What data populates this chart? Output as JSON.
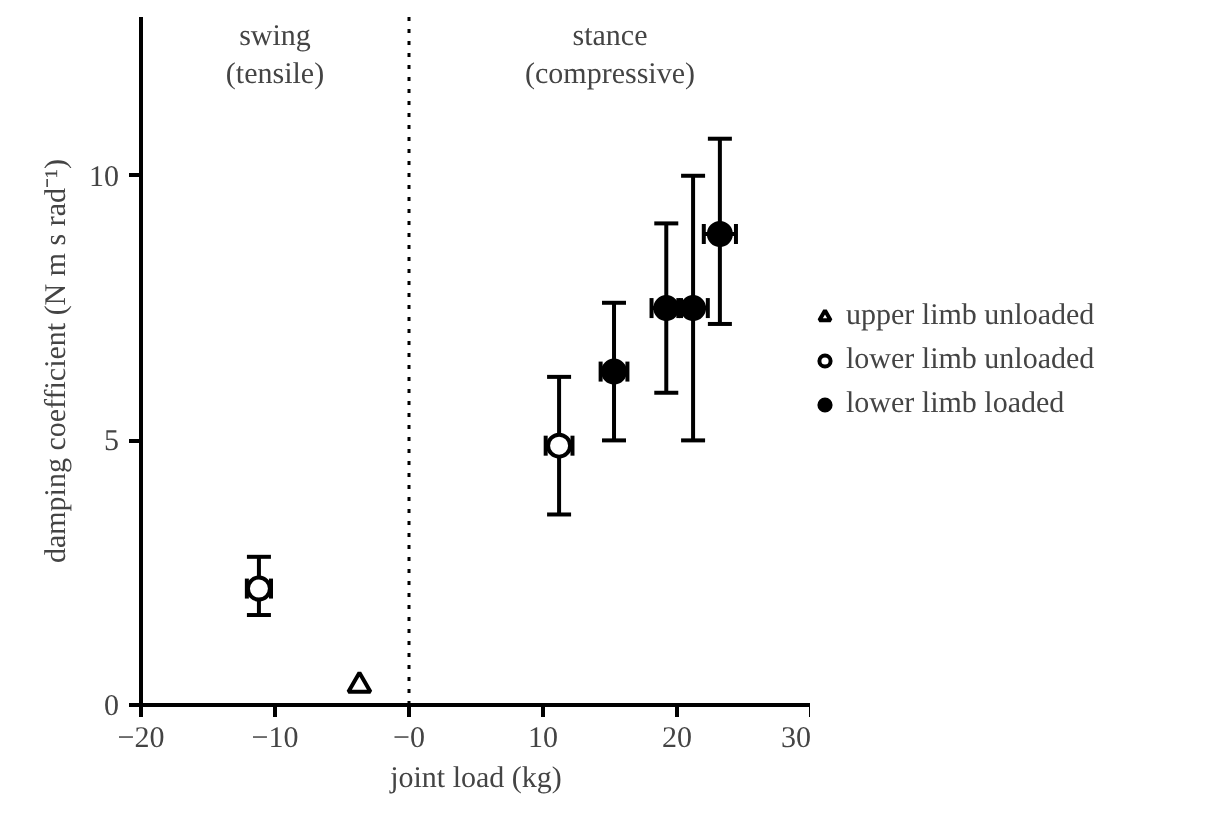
{
  "chart_data": {
    "type": "scatter",
    "xlabel": "joint load (kg)",
    "ylabel": "damping coefficient (N m s rad⁻¹)",
    "xlim": [
      -20,
      30
    ],
    "ylim": [
      0,
      13
    ],
    "xticks": [
      -20,
      -10,
      {
        "value": 0,
        "label": "−0"
      },
      10,
      20,
      30
    ],
    "yticks": [
      0,
      5,
      10
    ],
    "grid": false,
    "legend": "right",
    "ref_lines": [
      {
        "axis": "x",
        "value": 0,
        "line_style": "dotted",
        "color": "#000000"
      }
    ],
    "annotations": [
      "swing\n(tensile)",
      "stance\n(compressive)"
    ],
    "series": [
      {
        "name": "upper limb unloaded",
        "marker": "triangle",
        "color": "#ffffff",
        "x": [
          -3.7
        ],
        "values": [
          0.37
        ],
        "errors": [
          null
        ],
        "xerrors": [
          null
        ]
      },
      {
        "name": "lower limb unloaded",
        "marker": "circle",
        "color": "#ffffff",
        "x": [
          -11.2,
          11.2
        ],
        "values": [
          2.2,
          4.9
        ],
        "errors": [
          [
            1.7,
            2.8
          ],
          [
            3.6,
            6.2
          ]
        ],
        "xerrors": [
          0.9,
          1.0
        ]
      },
      {
        "name": "lower limb loaded",
        "marker": "circle",
        "color": "#000000",
        "x": [
          15.3,
          19.2,
          21.2,
          23.2
        ],
        "values": [
          6.3,
          7.5,
          7.5,
          8.9
        ],
        "errors": [
          [
            5.0,
            7.6
          ],
          [
            5.9,
            9.1
          ],
          [
            5.0,
            10.0
          ],
          [
            7.2,
            10.7
          ]
        ],
        "xerrors": [
          1.0,
          1.1,
          1.1,
          1.2
        ]
      }
    ]
  }
}
